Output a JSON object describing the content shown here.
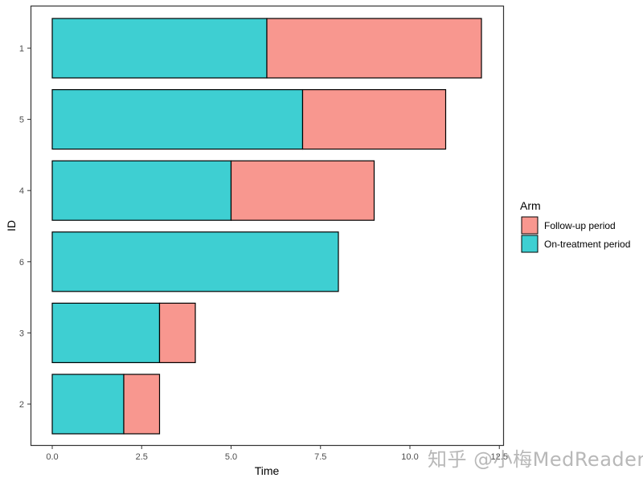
{
  "chart_data": {
    "type": "bar",
    "orientation": "horizontal",
    "stacked": true,
    "title": "",
    "xlabel": "Time",
    "ylabel": "ID",
    "xlim": [
      -0.6,
      12.6
    ],
    "x_ticks": [
      0.0,
      2.5,
      5.0,
      7.5,
      10.0,
      12.5
    ],
    "x_tick_labels": [
      "0.0",
      "2.5",
      "5.0",
      "7.5",
      "10.0",
      "12.5"
    ],
    "categories": [
      "1",
      "5",
      "4",
      "6",
      "3",
      "2"
    ],
    "series": [
      {
        "name": "On-treatment period",
        "color": "#3ECFD2",
        "values": [
          6,
          7,
          5,
          8,
          3,
          2
        ]
      },
      {
        "name": "Follow-up period",
        "color": "#F8978F",
        "values": [
          6,
          4,
          4,
          0,
          1,
          1
        ]
      }
    ],
    "totals": [
      12,
      11,
      9,
      8,
      4,
      3
    ],
    "grid": false,
    "legend": {
      "title": "Arm",
      "position": "right",
      "entries": [
        {
          "label": "Follow-up period",
          "color": "#F8978F"
        },
        {
          "label": "On-treatment period",
          "color": "#3ECFD2"
        }
      ]
    }
  },
  "watermark": "知乎 @小梅MedReader"
}
